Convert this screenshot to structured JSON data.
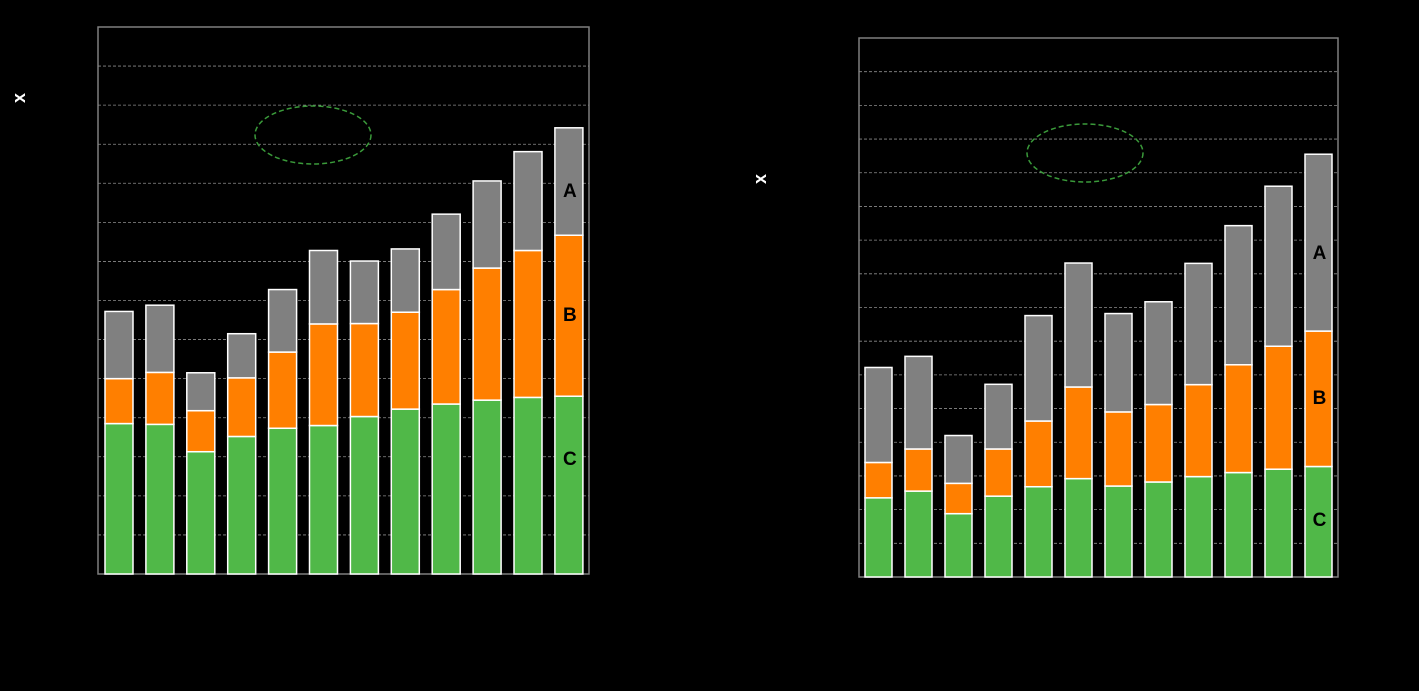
{
  "colors": {
    "background": "#000000",
    "plot_border": "#7f7f7f",
    "grid": "#8c8c8c",
    "bar_outline": "#ffffff",
    "series_A": "#808080",
    "series_B": "#ff7f00",
    "series_C": "#50b848",
    "ellipse": "#3a9a3a"
  },
  "chart_data": [
    {
      "type": "bar",
      "stacked": true,
      "ylabel": "x",
      "ylim": [
        0,
        14
      ],
      "grid": true,
      "series": [
        {
          "name": "C",
          "values": [
            3.85,
            3.83,
            3.13,
            3.52,
            3.73,
            3.8,
            4.03,
            4.22,
            4.35,
            4.45,
            4.52,
            4.55
          ]
        },
        {
          "name": "B",
          "values": [
            1.15,
            1.33,
            1.05,
            1.5,
            1.95,
            2.6,
            2.38,
            2.48,
            2.93,
            3.38,
            3.76,
            4.12
          ]
        },
        {
          "name": "A",
          "values": [
            1.72,
            1.72,
            0.97,
            1.13,
            1.6,
            1.88,
            1.6,
            1.62,
            1.93,
            2.23,
            2.53,
            2.75
          ]
        }
      ],
      "segment_labels": [
        "A",
        "B",
        "C"
      ],
      "annotation": "dashed-ellipse"
    },
    {
      "type": "bar",
      "stacked": true,
      "ylabel": "x",
      "ylim": [
        0,
        16
      ],
      "grid": true,
      "series": [
        {
          "name": "C",
          "values": [
            2.35,
            2.55,
            1.88,
            2.4,
            2.68,
            2.92,
            2.7,
            2.82,
            2.98,
            3.1,
            3.2,
            3.28
          ]
        },
        {
          "name": "B",
          "values": [
            1.05,
            1.25,
            0.9,
            1.4,
            1.95,
            2.72,
            2.2,
            2.3,
            2.73,
            3.2,
            3.65,
            4.02
          ]
        },
        {
          "name": "A",
          "values": [
            2.82,
            2.75,
            1.42,
            1.92,
            3.13,
            3.68,
            2.92,
            3.05,
            3.6,
            4.13,
            4.75,
            5.25
          ]
        }
      ],
      "segment_labels": [
        "A",
        "B",
        "C"
      ],
      "annotation": "dashed-ellipse"
    }
  ]
}
